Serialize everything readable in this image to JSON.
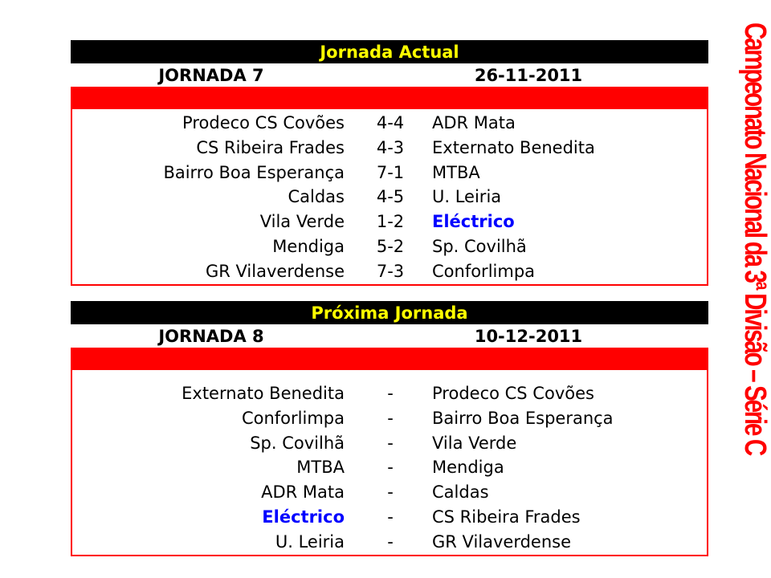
{
  "side_title": "Campeonato Nacional da 3ª Divisão – Série C",
  "highlight_color": "#0000ff",
  "current": {
    "title": "Jornada Actual",
    "round": "JORNADA 7",
    "date": "26-11-2011",
    "matches": [
      {
        "home": "Prodeco CS Covões",
        "score": "4-4",
        "away": "ADR Mata"
      },
      {
        "home": "CS Ribeira Frades",
        "score": "4-3",
        "away": "Externato Benedita"
      },
      {
        "home": "Bairro Boa Esperança",
        "score": "7-1",
        "away": "MTBA"
      },
      {
        "home": "Caldas",
        "score": "4-5",
        "away": "U. Leiria"
      },
      {
        "home": "Vila Verde",
        "score": "1-2",
        "away": "Eléctrico"
      },
      {
        "home": "Mendiga",
        "score": "5-2",
        "away": "Sp. Covilhã"
      },
      {
        "home": "GR Vilaverdense",
        "score": "7-3",
        "away": "Conforlimpa"
      }
    ]
  },
  "next": {
    "title": "Próxima Jornada",
    "round": "JORNADA 8",
    "date": "10-12-2011",
    "matches": [
      {
        "home": "Externato Benedita",
        "score": "-",
        "away": "Prodeco CS Covões"
      },
      {
        "home": "Conforlimpa",
        "score": "-",
        "away": "Bairro Boa Esperança"
      },
      {
        "home": "Sp. Covilhã",
        "score": "-",
        "away": "Vila Verde"
      },
      {
        "home": "MTBA",
        "score": "-",
        "away": "Mendiga"
      },
      {
        "home": "ADR Mata",
        "score": "-",
        "away": "Caldas"
      },
      {
        "home": "Eléctrico",
        "score": "-",
        "away": "CS Ribeira Frades"
      },
      {
        "home": "U. Leiria",
        "score": "-",
        "away": "GR Vilaverdense"
      }
    ]
  }
}
